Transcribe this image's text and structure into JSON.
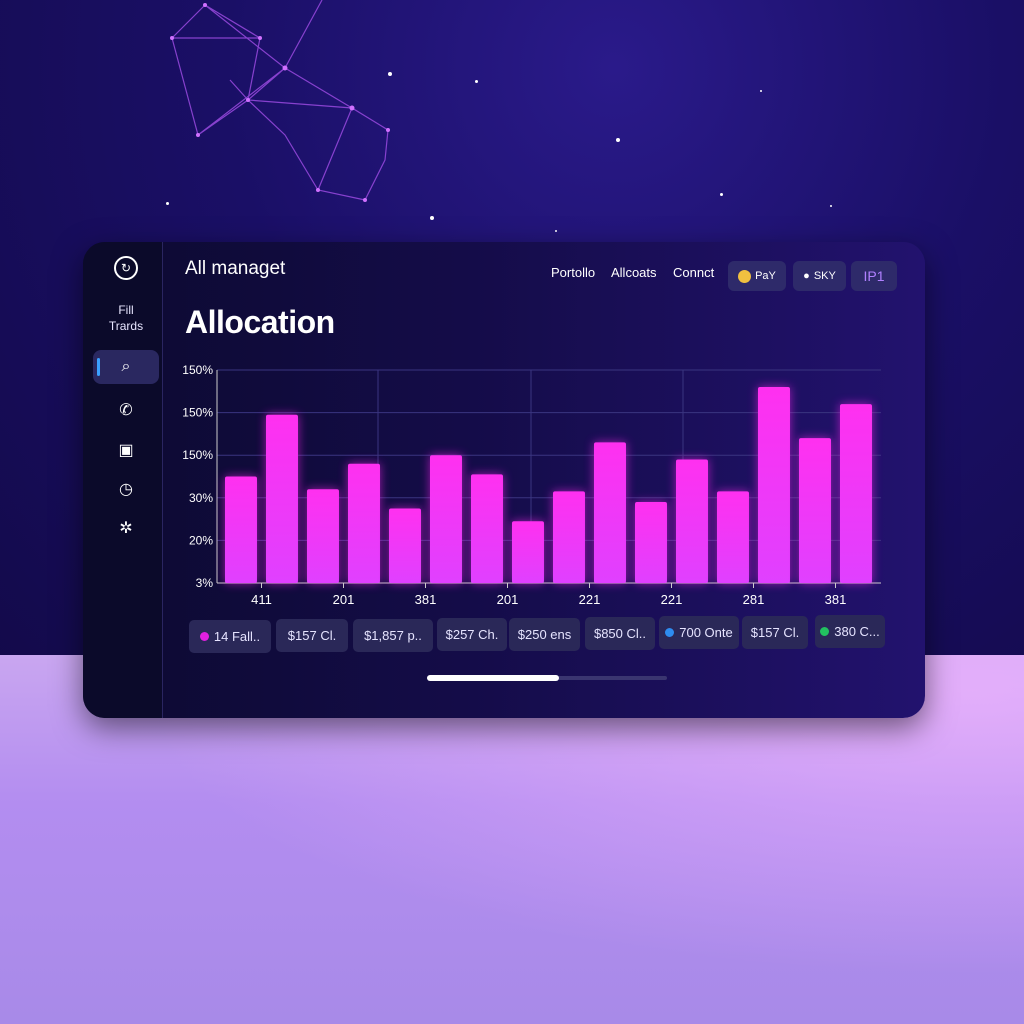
{
  "header": {
    "app_title": "All managet",
    "nav": [
      "Portollo",
      "Allcoats",
      "Connct"
    ],
    "pills": [
      {
        "icon": "smiley-icon",
        "label": "PaY"
      },
      {
        "icon": "apple-icon",
        "label": "SKY"
      },
      {
        "icon": "",
        "label": "IP1"
      }
    ]
  },
  "sidebar": {
    "label_line1": "Fill",
    "label_line2": "Trards",
    "items": [
      {
        "icon": "search-icon",
        "glyph": "⌕",
        "active": true
      },
      {
        "icon": "phone-icon",
        "glyph": "✆"
      },
      {
        "icon": "wallet-icon",
        "glyph": "▣"
      },
      {
        "icon": "clock-icon",
        "glyph": "◷"
      },
      {
        "icon": "puzzle-icon",
        "glyph": "✲"
      }
    ]
  },
  "page_title": "Allocation",
  "chart_data": {
    "type": "bar",
    "title": "",
    "xlabel": "",
    "ylabel": "",
    "y_tick_labels": [
      "150%",
      "150%",
      "150%",
      "30%",
      "20%",
      "3%"
    ],
    "x_tick_labels": [
      "411",
      "201",
      "381",
      "201",
      "221",
      "221",
      "281",
      "381"
    ],
    "values": [
      50,
      79,
      44,
      56,
      35,
      60,
      51,
      29,
      43,
      66,
      38,
      58,
      43,
      92,
      68,
      84
    ],
    "ylim": [
      0,
      100
    ],
    "grid": true,
    "bar_color": "#ff2af0"
  },
  "chips": [
    {
      "label": "14 Fall..",
      "dot": "#e020e0"
    },
    {
      "label": "$157 Cl."
    },
    {
      "label": "$1,857 p.."
    },
    {
      "label": "$257 Ch."
    },
    {
      "label": "$250 ens"
    },
    {
      "label": "$850 Cl.."
    },
    {
      "label": "700 Onte",
      "dot": "#2e8cf0"
    },
    {
      "label": "$157 Cl."
    },
    {
      "label": "380 C...",
      "dot": "#22c060"
    }
  ],
  "scroll_progress": 0.55
}
